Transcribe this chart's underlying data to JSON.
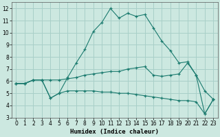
{
  "xlabel": "Humidex (Indice chaleur)",
  "ylabel": "",
  "bg_color": "#cce8e0",
  "grid_color": "#a8cfc8",
  "line_color": "#1a7a6e",
  "ylim": [
    3,
    12.5
  ],
  "xlim": [
    -0.5,
    23.5
  ],
  "yticks": [
    3,
    4,
    5,
    6,
    7,
    8,
    9,
    10,
    11,
    12
  ],
  "xticks": [
    0,
    1,
    2,
    3,
    4,
    5,
    6,
    7,
    8,
    9,
    10,
    11,
    12,
    13,
    14,
    15,
    16,
    17,
    18,
    19,
    20,
    21,
    22,
    23
  ],
  "line1_x": [
    0,
    1,
    2,
    3,
    4,
    5,
    6,
    7,
    8,
    9,
    10,
    11,
    12,
    13,
    14,
    15,
    16,
    17,
    18,
    19,
    20,
    21,
    22,
    23
  ],
  "line1_y": [
    5.8,
    5.8,
    6.1,
    6.1,
    4.6,
    5.0,
    6.3,
    7.5,
    8.6,
    10.1,
    10.85,
    12.0,
    11.2,
    11.6,
    11.35,
    11.5,
    10.4,
    9.3,
    8.5,
    7.5,
    7.6,
    6.5,
    3.3,
    4.5
  ],
  "line2_x": [
    0,
    1,
    2,
    3,
    4,
    5,
    6,
    7,
    8,
    9,
    10,
    11,
    12,
    13,
    14,
    15,
    16,
    17,
    18,
    19,
    20,
    21,
    22,
    23
  ],
  "line2_y": [
    5.8,
    5.8,
    6.1,
    6.1,
    6.1,
    6.1,
    6.2,
    6.3,
    6.5,
    6.6,
    6.7,
    6.8,
    6.8,
    7.0,
    7.1,
    7.2,
    6.5,
    6.4,
    6.5,
    6.6,
    7.5,
    6.5,
    5.2,
    4.5
  ],
  "line3_x": [
    0,
    1,
    2,
    3,
    4,
    5,
    6,
    7,
    8,
    9,
    10,
    11,
    12,
    13,
    14,
    15,
    16,
    17,
    18,
    19,
    20,
    21,
    22,
    23
  ],
  "line3_y": [
    5.8,
    5.8,
    6.1,
    6.1,
    4.6,
    5.0,
    5.2,
    5.2,
    5.2,
    5.2,
    5.1,
    5.1,
    5.0,
    5.0,
    4.9,
    4.8,
    4.7,
    4.6,
    4.5,
    4.4,
    4.4,
    4.3,
    3.3,
    4.5
  ],
  "tick_fontsize": 5.5,
  "xlabel_fontsize": 6.5
}
